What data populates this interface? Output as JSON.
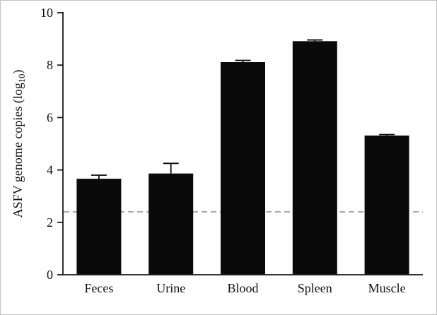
{
  "chart_data": {
    "type": "bar",
    "categories": [
      "Feces",
      "Urine",
      "Blood",
      "Spleen",
      "Muscle"
    ],
    "values": [
      3.65,
      3.85,
      8.1,
      8.9,
      5.3
    ],
    "error_upper": [
      0.15,
      0.4,
      0.08,
      0.06,
      0.05
    ],
    "title": "",
    "xlabel": "",
    "ylabel": {
      "pre": "ASFV genome copies (log",
      "sub": "10",
      "post": ")"
    },
    "ylim": [
      0,
      10
    ],
    "yticks": [
      0,
      2,
      4,
      6,
      8,
      10
    ],
    "threshold_line": {
      "y": 2.4,
      "style": "dashed",
      "color": "#9a9a9a"
    },
    "bar_color": "#0a0a0a",
    "axis_color": "#1a1a1a",
    "grid": false,
    "legend": false
  }
}
